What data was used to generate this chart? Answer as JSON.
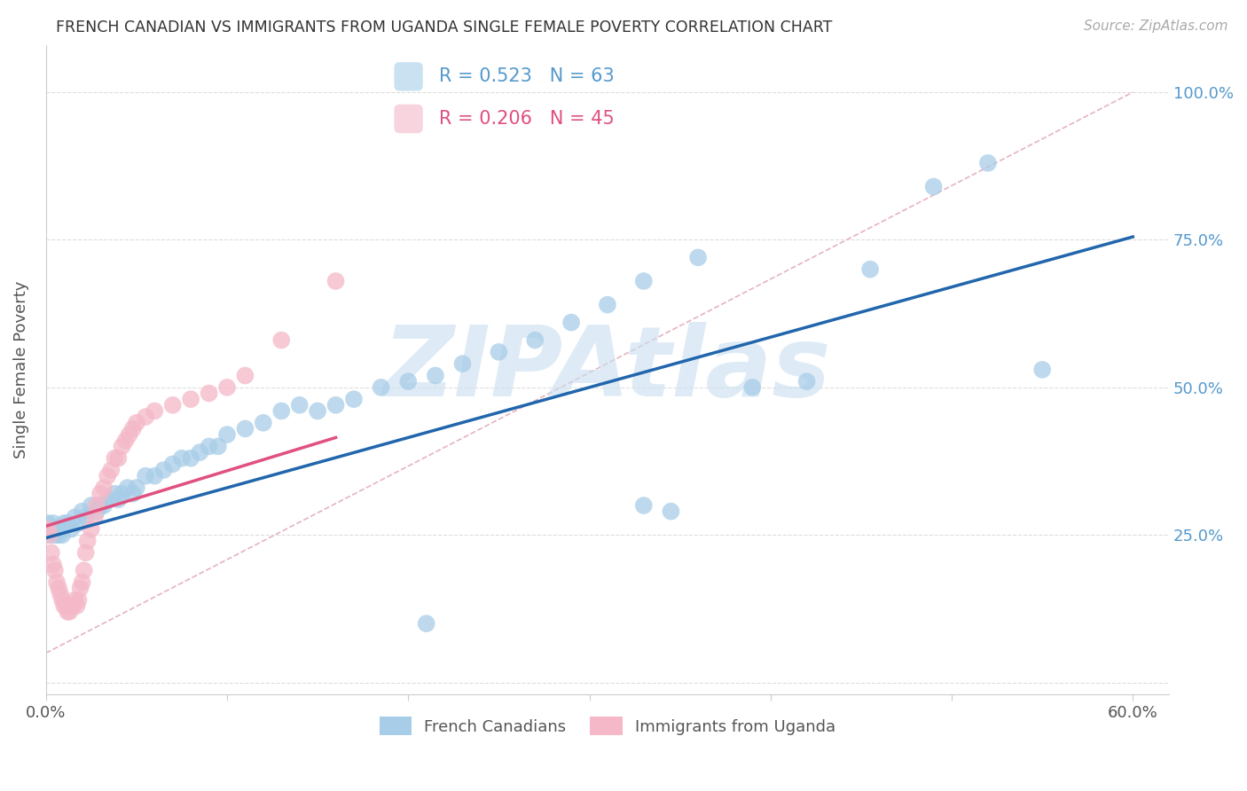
{
  "title": "FRENCH CANADIAN VS IMMIGRANTS FROM UGANDA SINGLE FEMALE POVERTY CORRELATION CHART",
  "source": "Source: ZipAtlas.com",
  "ylabel": "Single Female Poverty",
  "xlim": [
    0.0,
    0.62
  ],
  "ylim": [
    -0.02,
    1.08
  ],
  "yticks": [
    0.0,
    0.25,
    0.5,
    0.75,
    1.0
  ],
  "xticks": [
    0.0,
    0.1,
    0.2,
    0.3,
    0.4,
    0.5,
    0.6
  ],
  "blue_R": 0.523,
  "blue_N": 63,
  "pink_R": 0.206,
  "pink_N": 45,
  "blue_color": "#a8cde8",
  "pink_color": "#f4b8c8",
  "blue_line_color": "#2166ac",
  "pink_line_color": "#e05080",
  "ref_line_color": "#e0a0b0",
  "title_color": "#333333",
  "axis_label_color": "#555555",
  "right_tick_color": "#5599cc",
  "watermark": "ZIPAtlas",
  "watermark_color": "#c8dff0",
  "grid_color": "#dddddd",
  "blue_scatter_x": [
    0.001,
    0.002,
    0.003,
    0.004,
    0.005,
    0.006,
    0.007,
    0.008,
    0.009,
    0.01,
    0.012,
    0.014,
    0.016,
    0.018,
    0.02,
    0.022,
    0.025,
    0.028,
    0.03,
    0.032,
    0.035,
    0.038,
    0.04,
    0.042,
    0.045,
    0.048,
    0.05,
    0.055,
    0.06,
    0.065,
    0.07,
    0.075,
    0.08,
    0.085,
    0.09,
    0.095,
    0.1,
    0.11,
    0.12,
    0.13,
    0.14,
    0.15,
    0.16,
    0.17,
    0.185,
    0.2,
    0.215,
    0.23,
    0.25,
    0.27,
    0.29,
    0.31,
    0.33,
    0.36,
    0.39,
    0.42,
    0.455,
    0.49,
    0.52,
    0.55,
    0.33,
    0.345,
    0.21
  ],
  "blue_scatter_y": [
    0.27,
    0.25,
    0.26,
    0.27,
    0.25,
    0.26,
    0.25,
    0.26,
    0.25,
    0.27,
    0.27,
    0.26,
    0.28,
    0.27,
    0.29,
    0.28,
    0.3,
    0.29,
    0.3,
    0.3,
    0.31,
    0.32,
    0.31,
    0.32,
    0.33,
    0.32,
    0.33,
    0.35,
    0.35,
    0.36,
    0.37,
    0.38,
    0.38,
    0.39,
    0.4,
    0.4,
    0.42,
    0.43,
    0.44,
    0.46,
    0.47,
    0.46,
    0.47,
    0.48,
    0.5,
    0.51,
    0.52,
    0.54,
    0.56,
    0.58,
    0.61,
    0.64,
    0.68,
    0.72,
    0.5,
    0.51,
    0.7,
    0.84,
    0.88,
    0.53,
    0.3,
    0.29,
    0.1
  ],
  "pink_scatter_x": [
    0.001,
    0.002,
    0.003,
    0.004,
    0.005,
    0.006,
    0.007,
    0.008,
    0.009,
    0.01,
    0.011,
    0.012,
    0.013,
    0.015,
    0.016,
    0.017,
    0.018,
    0.019,
    0.02,
    0.021,
    0.022,
    0.023,
    0.025,
    0.027,
    0.028,
    0.03,
    0.032,
    0.034,
    0.036,
    0.038,
    0.04,
    0.042,
    0.044,
    0.046,
    0.048,
    0.05,
    0.055,
    0.06,
    0.07,
    0.08,
    0.09,
    0.1,
    0.11,
    0.13,
    0.16
  ],
  "pink_scatter_y": [
    0.26,
    0.25,
    0.22,
    0.2,
    0.19,
    0.17,
    0.16,
    0.15,
    0.14,
    0.13,
    0.13,
    0.12,
    0.12,
    0.13,
    0.14,
    0.13,
    0.14,
    0.16,
    0.17,
    0.19,
    0.22,
    0.24,
    0.26,
    0.28,
    0.3,
    0.32,
    0.33,
    0.35,
    0.36,
    0.38,
    0.38,
    0.4,
    0.41,
    0.42,
    0.43,
    0.44,
    0.45,
    0.46,
    0.47,
    0.48,
    0.49,
    0.5,
    0.52,
    0.58,
    0.68
  ],
  "blue_line_x0": 0.0,
  "blue_line_x1": 0.6,
  "blue_line_y0": 0.245,
  "blue_line_y1": 0.755,
  "pink_line_x0": 0.0,
  "pink_line_x1": 0.16,
  "pink_line_y0": 0.265,
  "pink_line_y1": 0.415,
  "ref_line_x0": 0.0,
  "ref_line_x1": 0.6,
  "ref_line_y0": 0.05,
  "ref_line_y1": 1.0
}
